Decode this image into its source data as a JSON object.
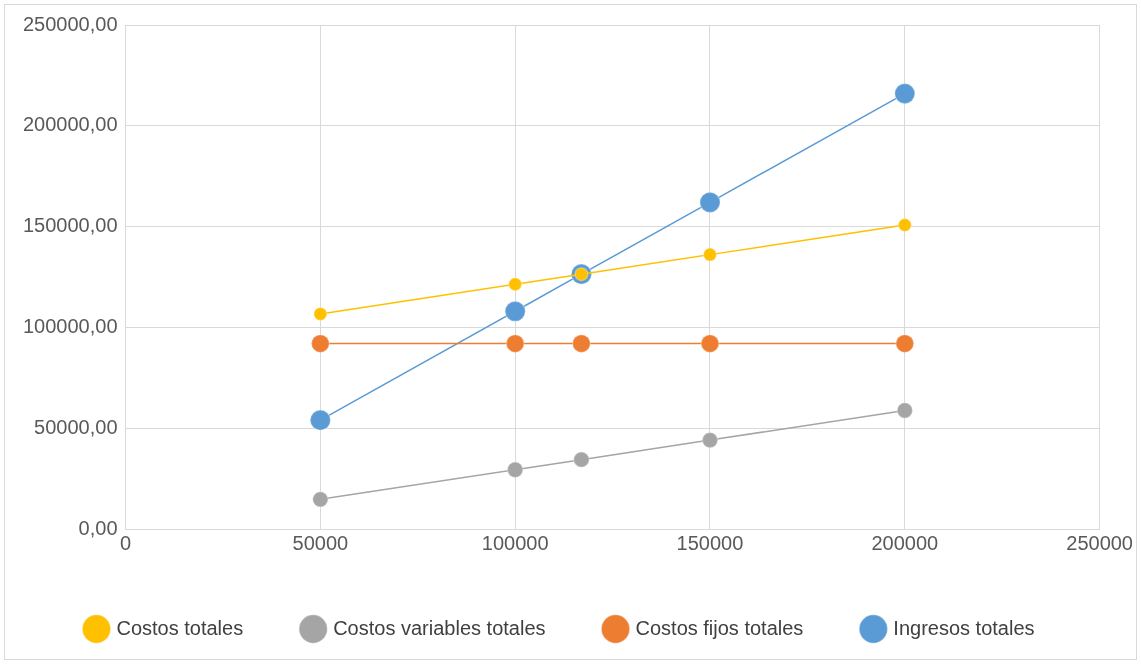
{
  "chart_data": {
    "type": "line",
    "x": [
      50000,
      100000,
      117000,
      150000,
      200000
    ],
    "series": [
      {
        "name": "Ingresos totales",
        "color": "#5b9bd5",
        "values": [
          54000,
          108000,
          126400,
          162000,
          216000
        ]
      },
      {
        "name": "Costos fijos totales",
        "color": "#ed7d31",
        "values": [
          92000,
          92000,
          92000,
          92000,
          92000
        ]
      },
      {
        "name": "Costos variables totales",
        "color": "#a5a5a5",
        "values": [
          14700,
          29400,
          34400,
          44100,
          58800
        ]
      },
      {
        "name": "Costos totales",
        "color": "#ffc000",
        "values": [
          106700,
          121400,
          126400,
          136100,
          150800
        ]
      }
    ],
    "xlim": [
      0,
      250000
    ],
    "xticks": [
      0,
      50000,
      100000,
      150000,
      200000,
      250000
    ],
    "ylim": [
      0,
      250000
    ],
    "yticks": [
      {
        "value": 0,
        "label": "0,00"
      },
      {
        "value": 50000,
        "label": "50000,00"
      },
      {
        "value": 100000,
        "label": "100000,00"
      },
      {
        "value": 150000,
        "label": "150000,00"
      },
      {
        "value": 200000,
        "label": "200000,00"
      },
      {
        "value": 250000,
        "label": "250000,00"
      }
    ],
    "grid": true,
    "legend": "bottom",
    "marker": "circle",
    "line_style": "solid"
  }
}
